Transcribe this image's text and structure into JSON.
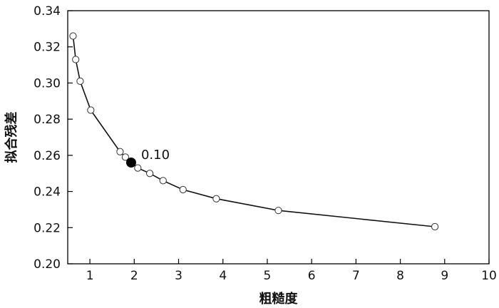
{
  "chart_data": {
    "type": "line",
    "title": "",
    "xlabel": "粗糙度",
    "ylabel": "拟合残差",
    "xlim": [
      0.5,
      10
    ],
    "ylim": [
      0.2,
      0.34
    ],
    "xticks": [
      "1",
      "2",
      "3",
      "4",
      "5",
      "6",
      "7",
      "8",
      "9",
      "10"
    ],
    "yticks": [
      "0.20",
      "0.22",
      "0.24",
      "0.26",
      "0.28",
      "0.30",
      "0.32",
      "0.34"
    ],
    "grid": false,
    "legend": "none",
    "series": [
      {
        "x": [
          0.62,
          0.68,
          0.78,
          1.02,
          1.68,
          1.8,
          2.08,
          2.35,
          2.65,
          3.1,
          3.85,
          5.25,
          8.78
        ],
        "y": [
          0.326,
          0.313,
          0.301,
          0.285,
          0.262,
          0.259,
          0.253,
          0.25,
          0.246,
          0.241,
          0.236,
          0.2295,
          0.2205
        ]
      }
    ],
    "highlight": {
      "x": 1.93,
      "y": 0.256,
      "label": "0.10"
    }
  }
}
